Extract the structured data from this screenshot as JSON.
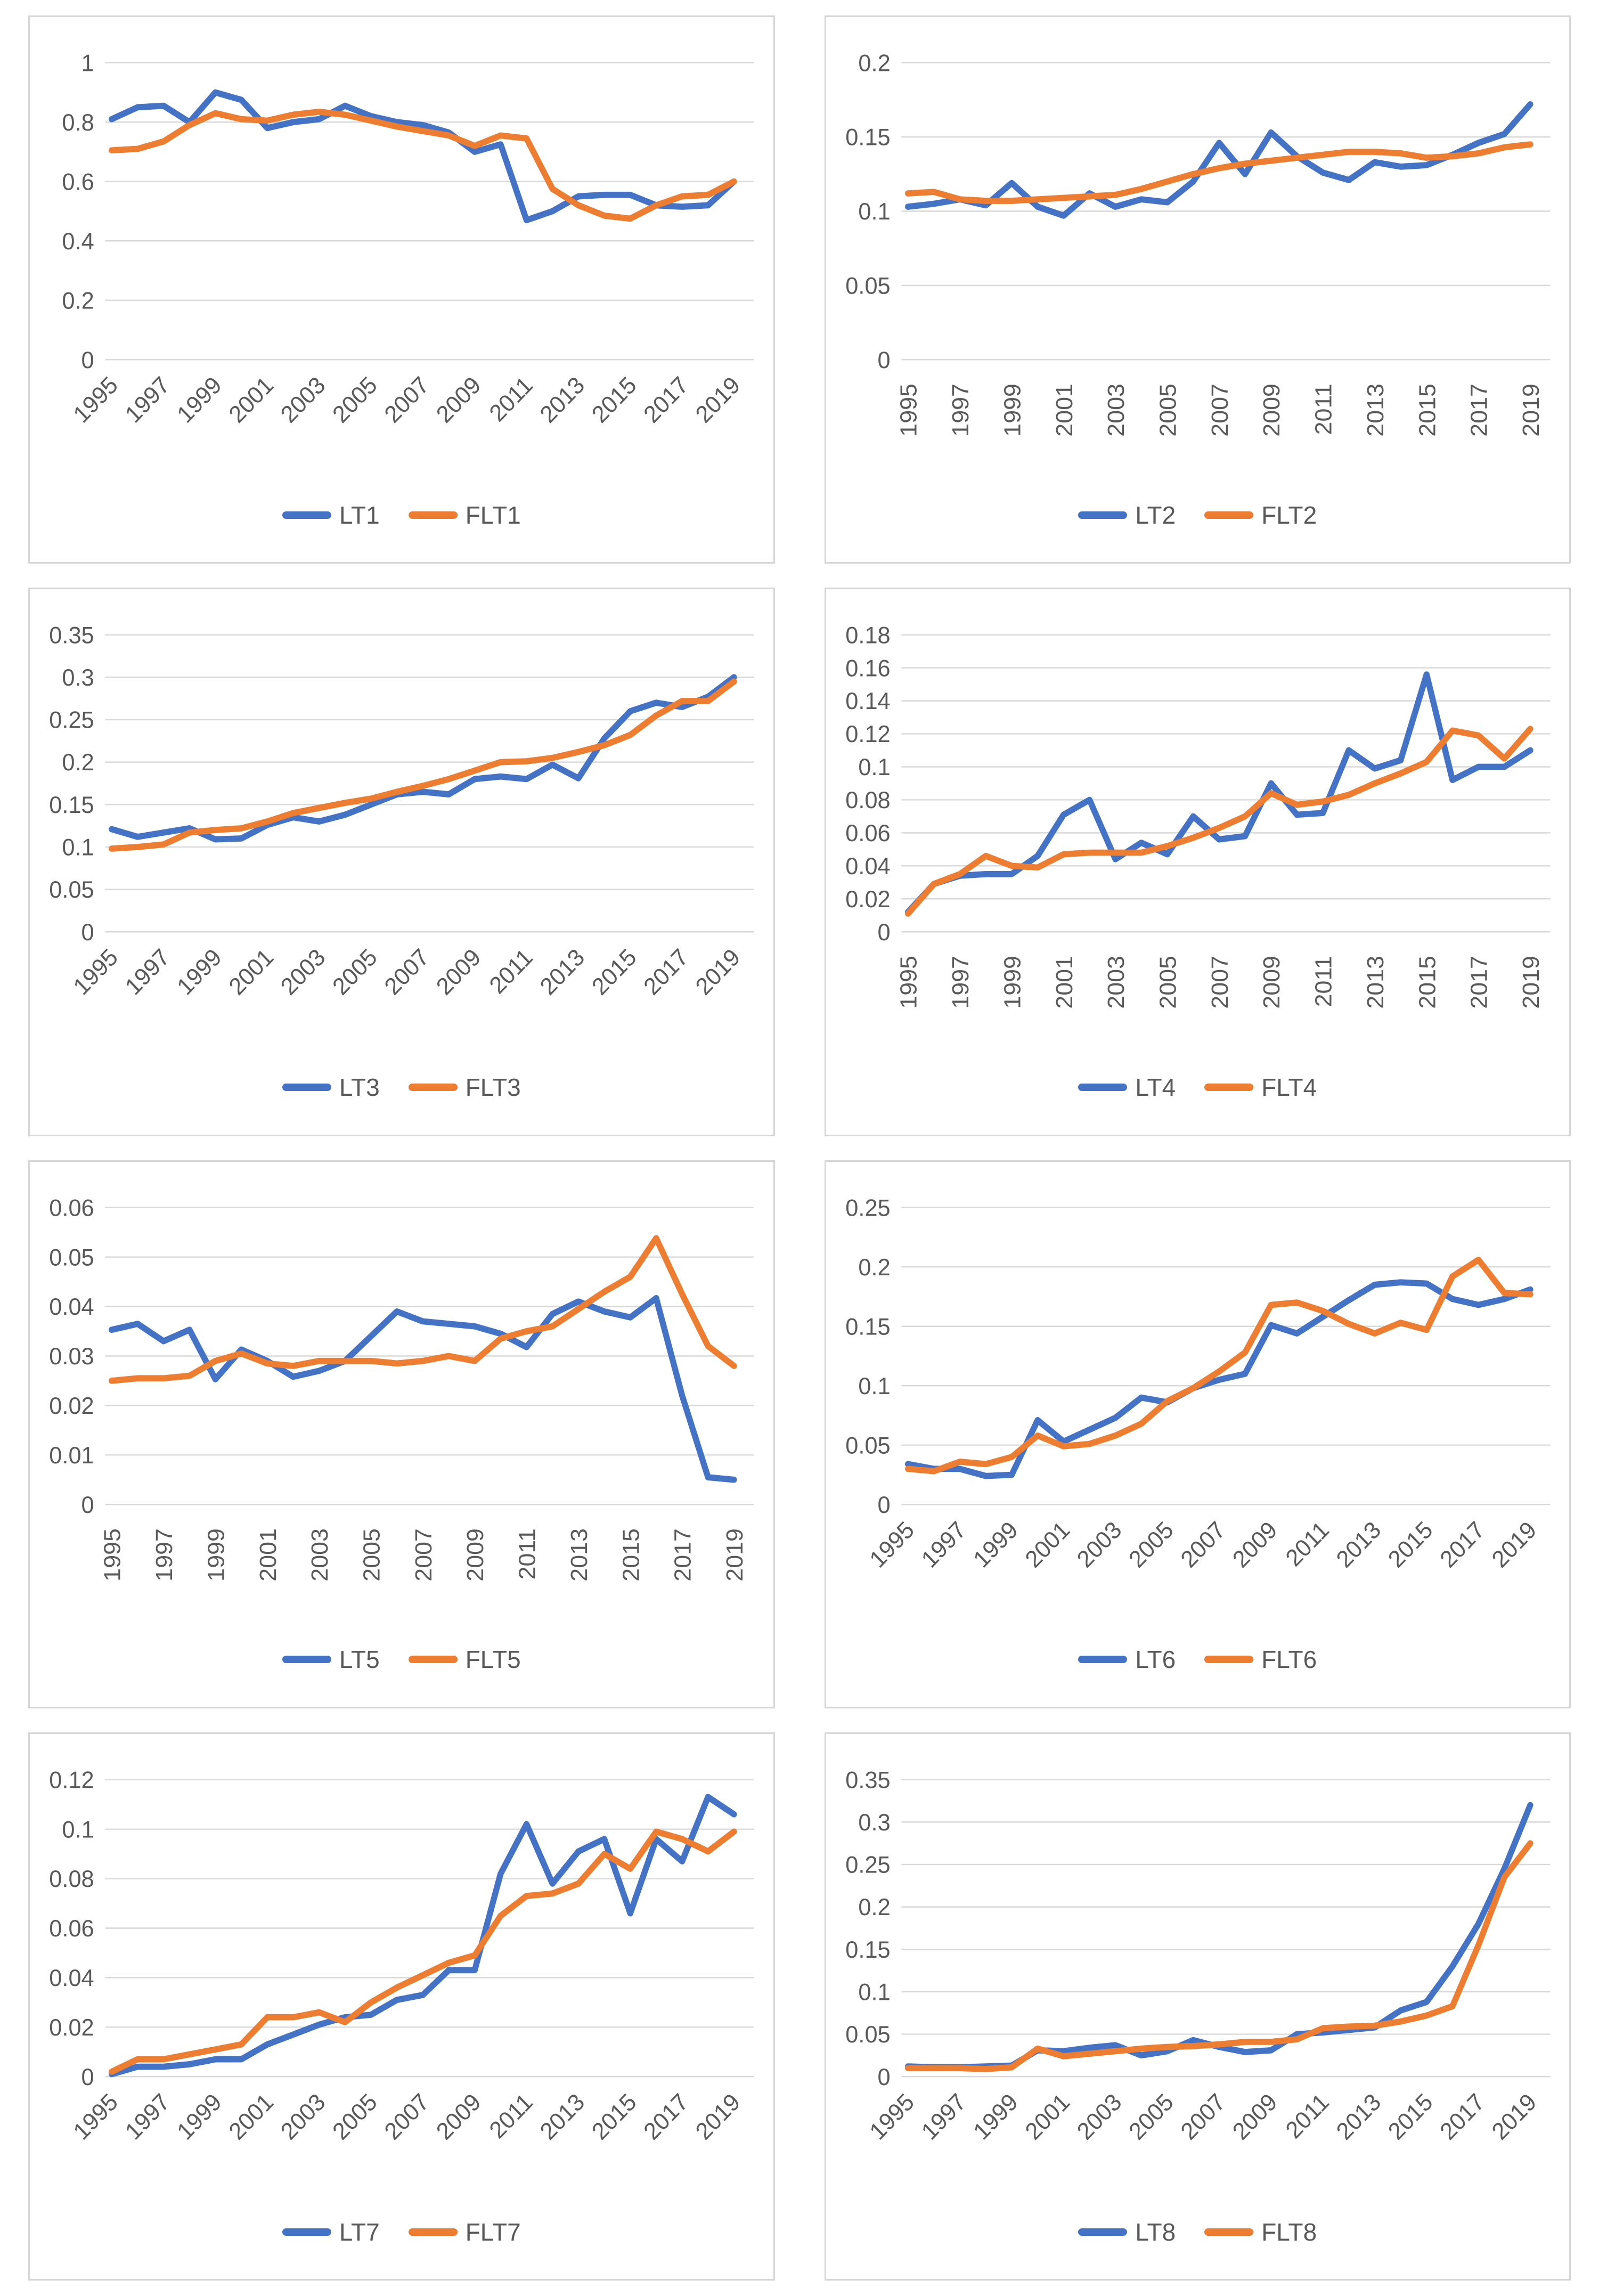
{
  "styles": {
    "series_blue": "#4472C4",
    "series_orange": "#ED7D31",
    "grid_color": "#D9D9D9",
    "axis_text_color": "#595959",
    "panel_border": "#D6D6D6",
    "background": "#FFFFFF"
  },
  "chart_data": {
    "type": "line",
    "x": [
      1995,
      1996,
      1997,
      1998,
      1999,
      2000,
      2001,
      2002,
      2003,
      2004,
      2005,
      2006,
      2007,
      2008,
      2009,
      2010,
      2011,
      2012,
      2013,
      2014,
      2015,
      2016,
      2017,
      2018,
      2019
    ],
    "x_tick_labels": [
      "1995",
      "1997",
      "1999",
      "2001",
      "2003",
      "2005",
      "2007",
      "2009",
      "2011",
      "2013",
      "2015",
      "2017",
      "2019"
    ],
    "grid": true,
    "legend_position": "bottom",
    "charts": [
      {
        "id": "chart-1",
        "ymax": 1,
        "ystep": 0.2,
        "y_tick_labels": [
          "0",
          "0.2",
          "0.4",
          "0.6",
          "0.8",
          "1"
        ],
        "x_label_rotation": 45,
        "series": [
          {
            "name": "LT1",
            "color_key": "series_blue",
            "values": [
              0.81,
              0.85,
              0.855,
              0.8,
              0.9,
              0.875,
              0.78,
              0.8,
              0.81,
              0.855,
              0.82,
              0.8,
              0.79,
              0.765,
              0.7,
              0.725,
              0.47,
              0.5,
              0.55,
              0.555,
              0.555,
              0.52,
              0.515,
              0.52,
              0.6
            ]
          },
          {
            "name": "FLT1",
            "color_key": "series_orange",
            "values": [
              0.705,
              0.71,
              0.735,
              0.79,
              0.83,
              0.81,
              0.805,
              0.825,
              0.835,
              0.825,
              0.805,
              0.785,
              0.77,
              0.755,
              0.72,
              0.755,
              0.745,
              0.575,
              0.52,
              0.485,
              0.475,
              0.52,
              0.55,
              0.555,
              0.6
            ]
          }
        ]
      },
      {
        "id": "chart-2",
        "ymax": 0.2,
        "ystep": 0.05,
        "y_tick_labels": [
          "0",
          "0.05",
          "0.1",
          "0.15",
          "0.2"
        ],
        "x_label_rotation": 90,
        "series": [
          {
            "name": "LT2",
            "color_key": "series_blue",
            "values": [
              0.103,
              0.105,
              0.108,
              0.104,
              0.119,
              0.103,
              0.097,
              0.112,
              0.103,
              0.108,
              0.106,
              0.12,
              0.146,
              0.125,
              0.153,
              0.137,
              0.126,
              0.121,
              0.133,
              0.13,
              0.131,
              0.138,
              0.146,
              0.152,
              0.172
            ]
          },
          {
            "name": "FLT2",
            "color_key": "series_orange",
            "values": [
              0.112,
              0.113,
              0.108,
              0.107,
              0.107,
              0.108,
              0.109,
              0.11,
              0.111,
              0.115,
              0.12,
              0.125,
              0.129,
              0.132,
              0.134,
              0.136,
              0.138,
              0.14,
              0.14,
              0.139,
              0.136,
              0.137,
              0.139,
              0.143,
              0.145
            ]
          }
        ]
      },
      {
        "id": "chart-3",
        "ymax": 0.35,
        "ystep": 0.05,
        "y_tick_labels": [
          "0",
          "0.05",
          "0.1",
          "0.15",
          "0.2",
          "0.25",
          "0.3",
          "0.35"
        ],
        "x_label_rotation": 45,
        "series": [
          {
            "name": "LT3",
            "color_key": "series_blue",
            "values": [
              0.121,
              0.112,
              0.117,
              0.122,
              0.109,
              0.11,
              0.126,
              0.135,
              0.13,
              0.138,
              0.15,
              0.162,
              0.165,
              0.162,
              0.18,
              0.183,
              0.18,
              0.197,
              0.181,
              0.228,
              0.26,
              0.27,
              0.265,
              0.277,
              0.3
            ]
          },
          {
            "name": "FLT3",
            "color_key": "series_orange",
            "values": [
              0.098,
              0.1,
              0.103,
              0.117,
              0.12,
              0.122,
              0.13,
              0.14,
              0.146,
              0.152,
              0.157,
              0.165,
              0.172,
              0.18,
              0.19,
              0.2,
              0.201,
              0.205,
              0.212,
              0.22,
              0.232,
              0.255,
              0.272,
              0.272,
              0.295
            ]
          }
        ]
      },
      {
        "id": "chart-4",
        "ymax": 0.18,
        "ystep": 0.02,
        "y_tick_labels": [
          "0",
          "0.02",
          "0.04",
          "0.06",
          "0.08",
          "0.1",
          "0.12",
          "0.14",
          "0.16",
          "0.18"
        ],
        "x_label_rotation": 90,
        "series": [
          {
            "name": "LT4",
            "color_key": "series_blue",
            "values": [
              0.012,
              0.029,
              0.034,
              0.035,
              0.035,
              0.046,
              0.071,
              0.08,
              0.044,
              0.054,
              0.047,
              0.07,
              0.056,
              0.058,
              0.09,
              0.071,
              0.072,
              0.11,
              0.099,
              0.104,
              0.156,
              0.092,
              0.1,
              0.1,
              0.11
            ]
          },
          {
            "name": "FLT4",
            "color_key": "series_orange",
            "values": [
              0.011,
              0.029,
              0.035,
              0.046,
              0.04,
              0.039,
              0.047,
              0.048,
              0.048,
              0.048,
              0.052,
              0.057,
              0.063,
              0.07,
              0.084,
              0.077,
              0.079,
              0.083,
              0.09,
              0.096,
              0.103,
              0.122,
              0.119,
              0.105,
              0.123
            ]
          }
        ]
      },
      {
        "id": "chart-5",
        "ymax": 0.06,
        "ystep": 0.01,
        "y_tick_labels": [
          "0",
          "0.01",
          "0.02",
          "0.03",
          "0.04",
          "0.05",
          "0.06"
        ],
        "x_label_rotation": 90,
        "series": [
          {
            "name": "LT5",
            "color_key": "series_blue",
            "values": [
              0.0353,
              0.0365,
              0.033,
              0.0353,
              0.0253,
              0.0313,
              0.029,
              0.0258,
              0.027,
              0.029,
              0.034,
              0.039,
              0.037,
              0.0365,
              0.036,
              0.0345,
              0.0318,
              0.0385,
              0.041,
              0.039,
              0.0378,
              0.0417,
              0.022,
              0.0055,
              0.005
            ]
          },
          {
            "name": "FLT5",
            "color_key": "series_orange",
            "values": [
              0.025,
              0.0255,
              0.0255,
              0.026,
              0.029,
              0.0305,
              0.0285,
              0.028,
              0.029,
              0.029,
              0.029,
              0.0285,
              0.029,
              0.03,
              0.029,
              0.0335,
              0.035,
              0.036,
              0.0395,
              0.043,
              0.046,
              0.0538,
              0.0425,
              0.032,
              0.028
            ]
          }
        ]
      },
      {
        "id": "chart-6",
        "ymax": 0.25,
        "ystep": 0.05,
        "y_tick_labels": [
          "0",
          "0.05",
          "0.1",
          "0.15",
          "0.2",
          "0.25"
        ],
        "x_label_rotation": 45,
        "series": [
          {
            "name": "LT6",
            "color_key": "series_blue",
            "values": [
              0.034,
              0.03,
              0.03,
              0.024,
              0.025,
              0.071,
              0.053,
              0.063,
              0.073,
              0.09,
              0.086,
              0.098,
              0.105,
              0.11,
              0.151,
              0.144,
              0.158,
              0.172,
              0.185,
              0.187,
              0.186,
              0.173,
              0.168,
              0.173,
              0.181
            ]
          },
          {
            "name": "FLT6",
            "color_key": "series_orange",
            "values": [
              0.03,
              0.028,
              0.036,
              0.034,
              0.04,
              0.058,
              0.049,
              0.051,
              0.058,
              0.068,
              0.087,
              0.098,
              0.112,
              0.128,
              0.168,
              0.17,
              0.163,
              0.152,
              0.144,
              0.153,
              0.147,
              0.192,
              0.206,
              0.178,
              0.177
            ]
          }
        ]
      },
      {
        "id": "chart-7",
        "ymax": 0.12,
        "ystep": 0.02,
        "y_tick_labels": [
          "0",
          "0.02",
          "0.04",
          "0.06",
          "0.08",
          "0.1",
          "0.12"
        ],
        "x_label_rotation": 45,
        "series": [
          {
            "name": "LT7",
            "color_key": "series_blue",
            "values": [
              0.001,
              0.004,
              0.004,
              0.005,
              0.007,
              0.007,
              0.013,
              0.017,
              0.021,
              0.024,
              0.025,
              0.031,
              0.033,
              0.043,
              0.043,
              0.082,
              0.102,
              0.078,
              0.091,
              0.096,
              0.066,
              0.096,
              0.087,
              0.113,
              0.106
            ]
          },
          {
            "name": "FLT7",
            "color_key": "series_orange",
            "values": [
              0.002,
              0.007,
              0.007,
              0.009,
              0.011,
              0.013,
              0.024,
              0.024,
              0.026,
              0.022,
              0.03,
              0.036,
              0.041,
              0.046,
              0.049,
              0.065,
              0.073,
              0.074,
              0.078,
              0.09,
              0.084,
              0.099,
              0.096,
              0.091,
              0.099
            ]
          }
        ]
      },
      {
        "id": "chart-8",
        "ymax": 0.35,
        "ystep": 0.05,
        "y_tick_labels": [
          "0",
          "0.05",
          "0.1",
          "0.15",
          "0.2",
          "0.25",
          "0.3",
          "0.35"
        ],
        "x_label_rotation": 45,
        "series": [
          {
            "name": "LT8",
            "color_key": "series_blue",
            "values": [
              0.012,
              0.011,
              0.011,
              0.012,
              0.013,
              0.031,
              0.03,
              0.034,
              0.037,
              0.025,
              0.03,
              0.043,
              0.035,
              0.029,
              0.031,
              0.05,
              0.052,
              0.055,
              0.058,
              0.078,
              0.088,
              0.13,
              0.18,
              0.245,
              0.32
            ]
          },
          {
            "name": "FLT8",
            "color_key": "series_orange",
            "values": [
              0.01,
              0.01,
              0.01,
              0.009,
              0.011,
              0.033,
              0.024,
              0.027,
              0.03,
              0.033,
              0.035,
              0.036,
              0.038,
              0.041,
              0.041,
              0.044,
              0.057,
              0.059,
              0.06,
              0.065,
              0.072,
              0.083,
              0.155,
              0.235,
              0.275
            ]
          }
        ]
      }
    ]
  }
}
